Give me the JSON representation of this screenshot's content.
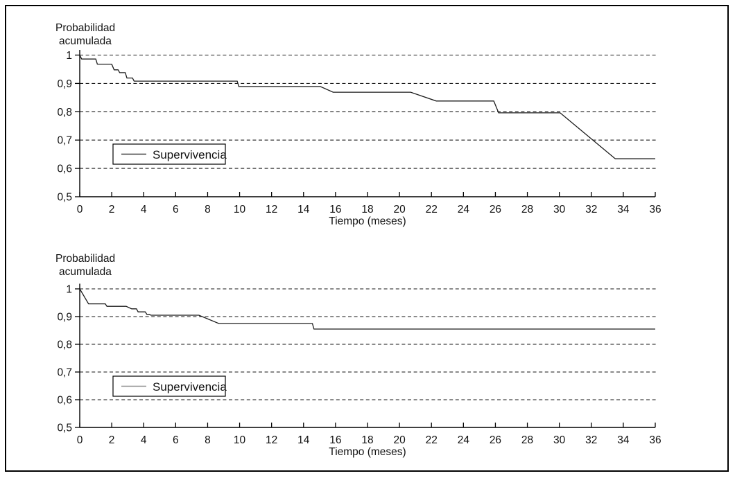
{
  "figure": {
    "background": "#ffffff",
    "border_color": "#000000",
    "text_color": "#111111"
  },
  "chart_data": [
    {
      "type": "line",
      "subtype": "kaplan-meier-step-survival",
      "position": "top",
      "ylabel_lines": [
        "Probabilidad",
        "acumulada"
      ],
      "xlabel": "Tiempo (meses)",
      "legend": {
        "label": "Supervivencia",
        "sample_color": "#3a3a3a"
      },
      "xlim": [
        0,
        36
      ],
      "ylim": [
        0.5,
        1.0
      ],
      "x_ticks": [
        0,
        2,
        4,
        6,
        8,
        10,
        12,
        14,
        16,
        18,
        20,
        22,
        24,
        26,
        28,
        30,
        32,
        34,
        36
      ],
      "y_ticks": [
        {
          "value": 1.0,
          "label": "1"
        },
        {
          "value": 0.9,
          "label": "0,9"
        },
        {
          "value": 0.8,
          "label": "0,8"
        },
        {
          "value": 0.7,
          "label": "0,7"
        },
        {
          "value": 0.6,
          "label": "0,6"
        },
        {
          "value": 0.5,
          "label": "0,5"
        }
      ],
      "grid": "dashed-horizontal",
      "line_color": "#1a1a1a",
      "series": [
        {
          "name": "Supervivencia",
          "points": [
            [
              0,
              1.0
            ],
            [
              0.12,
              0.986
            ],
            [
              1.0,
              0.986
            ],
            [
              1.1,
              0.968
            ],
            [
              2.0,
              0.968
            ],
            [
              2.15,
              0.948
            ],
            [
              2.4,
              0.948
            ],
            [
              2.5,
              0.938
            ],
            [
              2.85,
              0.938
            ],
            [
              2.95,
              0.919
            ],
            [
              3.3,
              0.919
            ],
            [
              3.4,
              0.908
            ],
            [
              9.85,
              0.908
            ],
            [
              9.95,
              0.889
            ],
            [
              15.05,
              0.889
            ],
            [
              15.85,
              0.869
            ],
            [
              20.7,
              0.869
            ],
            [
              22.3,
              0.838
            ],
            [
              25.9,
              0.838
            ],
            [
              26.2,
              0.796
            ],
            [
              30.05,
              0.796
            ],
            [
              33.5,
              0.634
            ],
            [
              36,
              0.634
            ]
          ]
        }
      ]
    },
    {
      "type": "line",
      "subtype": "kaplan-meier-step-survival",
      "position": "bottom",
      "ylabel_lines": [
        "Probabilidad",
        "acumulada"
      ],
      "xlabel": "Tiempo (meses)",
      "legend": {
        "label": "Supervivencia",
        "sample_color": "#8a8a8a"
      },
      "xlim": [
        0,
        36
      ],
      "ylim": [
        0.5,
        1.0
      ],
      "x_ticks": [
        0,
        2,
        4,
        6,
        8,
        10,
        12,
        14,
        16,
        18,
        20,
        22,
        24,
        26,
        28,
        30,
        32,
        34,
        36
      ],
      "y_ticks": [
        {
          "value": 1.0,
          "label": "1"
        },
        {
          "value": 0.9,
          "label": "0,9"
        },
        {
          "value": 0.8,
          "label": "0,8"
        },
        {
          "value": 0.7,
          "label": "0,7"
        },
        {
          "value": 0.6,
          "label": "0,6"
        },
        {
          "value": 0.5,
          "label": "0,5"
        }
      ],
      "grid": "dashed-horizontal",
      "line_color": "#1a1a1a",
      "series": [
        {
          "name": "Supervivencia",
          "points": [
            [
              0,
              1.0
            ],
            [
              0.55,
              0.946
            ],
            [
              1.6,
              0.946
            ],
            [
              1.7,
              0.937
            ],
            [
              2.9,
              0.937
            ],
            [
              3.25,
              0.928
            ],
            [
              3.55,
              0.928
            ],
            [
              3.65,
              0.917
            ],
            [
              4.1,
              0.917
            ],
            [
              4.2,
              0.908
            ],
            [
              4.35,
              0.908
            ],
            [
              4.45,
              0.905
            ],
            [
              7.45,
              0.905
            ],
            [
              8.7,
              0.875
            ],
            [
              14.55,
              0.875
            ],
            [
              14.65,
              0.855
            ],
            [
              36,
              0.855
            ]
          ]
        }
      ]
    }
  ]
}
